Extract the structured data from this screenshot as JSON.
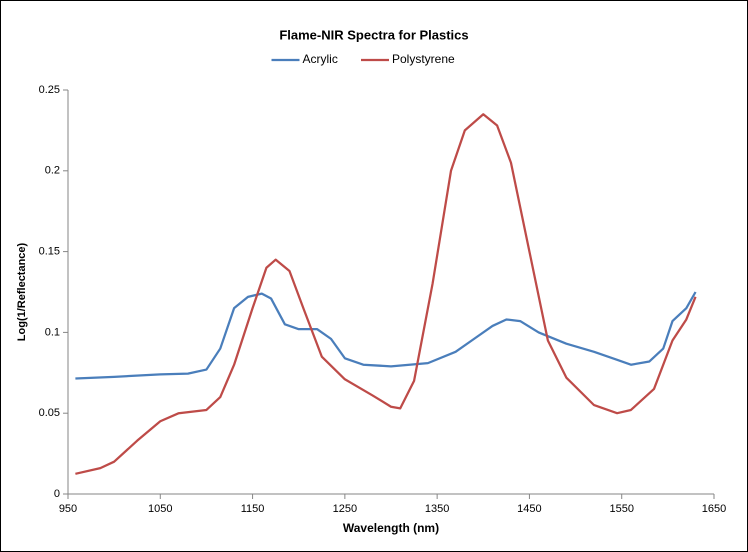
{
  "chart_data": {
    "type": "line",
    "title": "Flame-NIR Spectra for Plastics",
    "x_label": "Wavelength (nm)",
    "y_label": "Log(1/Reflectance)",
    "xlim": [
      950,
      1650
    ],
    "xticks": [
      950,
      1050,
      1150,
      1250,
      1350,
      1450,
      1550,
      1650
    ],
    "ylim": [
      0,
      0.25
    ],
    "yticks": [
      0,
      0.05,
      0.1,
      0.15,
      0.2,
      0.25
    ],
    "legend": "top",
    "grid": false,
    "series": [
      {
        "name": "Acrylic",
        "color": "#4a7ebb",
        "x": [
          958,
          1000,
          1050,
          1080,
          1100,
          1115,
          1130,
          1145,
          1160,
          1170,
          1185,
          1200,
          1220,
          1235,
          1250,
          1270,
          1300,
          1340,
          1370,
          1390,
          1410,
          1425,
          1440,
          1460,
          1490,
          1520,
          1545,
          1560,
          1580,
          1595,
          1605,
          1620,
          1630
        ],
        "values": [
          0.0715,
          0.0725,
          0.074,
          0.0745,
          0.077,
          0.09,
          0.115,
          0.122,
          0.124,
          0.121,
          0.105,
          0.102,
          0.102,
          0.096,
          0.084,
          0.08,
          0.079,
          0.081,
          0.088,
          0.096,
          0.104,
          0.108,
          0.107,
          0.1,
          0.093,
          0.088,
          0.083,
          0.08,
          0.082,
          0.09,
          0.107,
          0.115,
          0.125
        ]
      },
      {
        "name": "Polystyrene",
        "color": "#be4b48",
        "x": [
          958,
          985,
          1000,
          1025,
          1050,
          1070,
          1100,
          1115,
          1130,
          1150,
          1165,
          1175,
          1190,
          1205,
          1225,
          1250,
          1280,
          1300,
          1310,
          1325,
          1345,
          1365,
          1380,
          1400,
          1415,
          1430,
          1450,
          1470,
          1490,
          1520,
          1545,
          1560,
          1585,
          1605,
          1620,
          1630
        ],
        "values": [
          0.0125,
          0.016,
          0.02,
          0.033,
          0.045,
          0.05,
          0.052,
          0.06,
          0.08,
          0.115,
          0.14,
          0.145,
          0.138,
          0.115,
          0.085,
          0.071,
          0.061,
          0.054,
          0.053,
          0.07,
          0.13,
          0.2,
          0.225,
          0.235,
          0.228,
          0.205,
          0.15,
          0.095,
          0.072,
          0.055,
          0.05,
          0.052,
          0.065,
          0.095,
          0.108,
          0.122
        ]
      }
    ]
  }
}
